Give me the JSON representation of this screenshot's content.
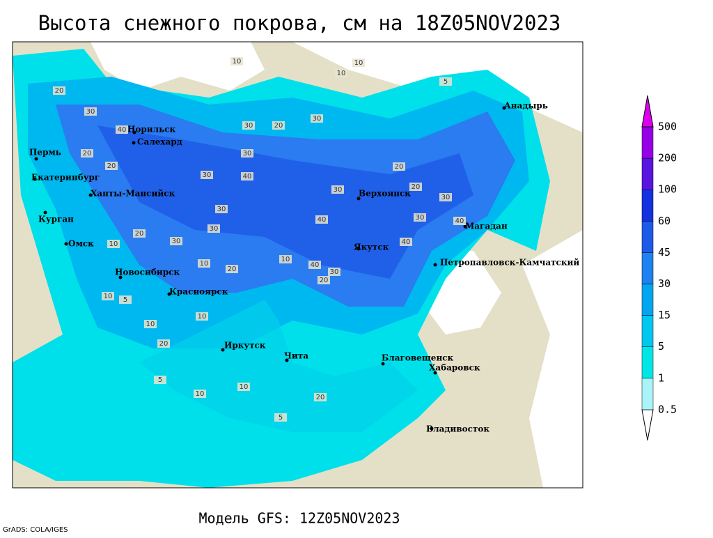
{
  "header": {
    "title": "Высота снежного покрова, см на 18Z05NOV2023"
  },
  "footer": {
    "subtitle": "Модель GFS: 12Z05NOV2023",
    "credit": "GrADS: COLA/IGES"
  },
  "legend": {
    "levels": [
      0.5,
      1,
      5,
      15,
      30,
      45,
      60,
      100,
      200,
      500
    ],
    "colors": [
      "#ffffff",
      "#a8f4f8",
      "#00e6e6",
      "#00c8f0",
      "#00a6f0",
      "#1e82f0",
      "#1e5ae8",
      "#1432e0",
      "#5a14e0",
      "#9600e6",
      "#dc00f0"
    ]
  },
  "map": {
    "cities": [
      "Анадырь",
      "Норильск",
      "Салехард",
      "Пермь",
      "Екатеринбург",
      "Ханты-Мансийск",
      "Верхоянск",
      "Курган",
      "Магадан",
      "Омск",
      "Якутск",
      "Петропавловск-Камчатский",
      "Новосибирск",
      "Красноярск",
      "Иркутск",
      "Чита",
      "Благовещенск",
      "Хабаровск",
      "Владивосток"
    ],
    "contour_labels": [
      10,
      10,
      10,
      5,
      20,
      30,
      40,
      30,
      20,
      30,
      30,
      20,
      20,
      30,
      40,
      20,
      30,
      20,
      30,
      30,
      40,
      30,
      40,
      30,
      40,
      30,
      20,
      10,
      10,
      20,
      40,
      30,
      20,
      10,
      10,
      20,
      10,
      10,
      5,
      5,
      10,
      10,
      20,
      5
    ]
  }
}
